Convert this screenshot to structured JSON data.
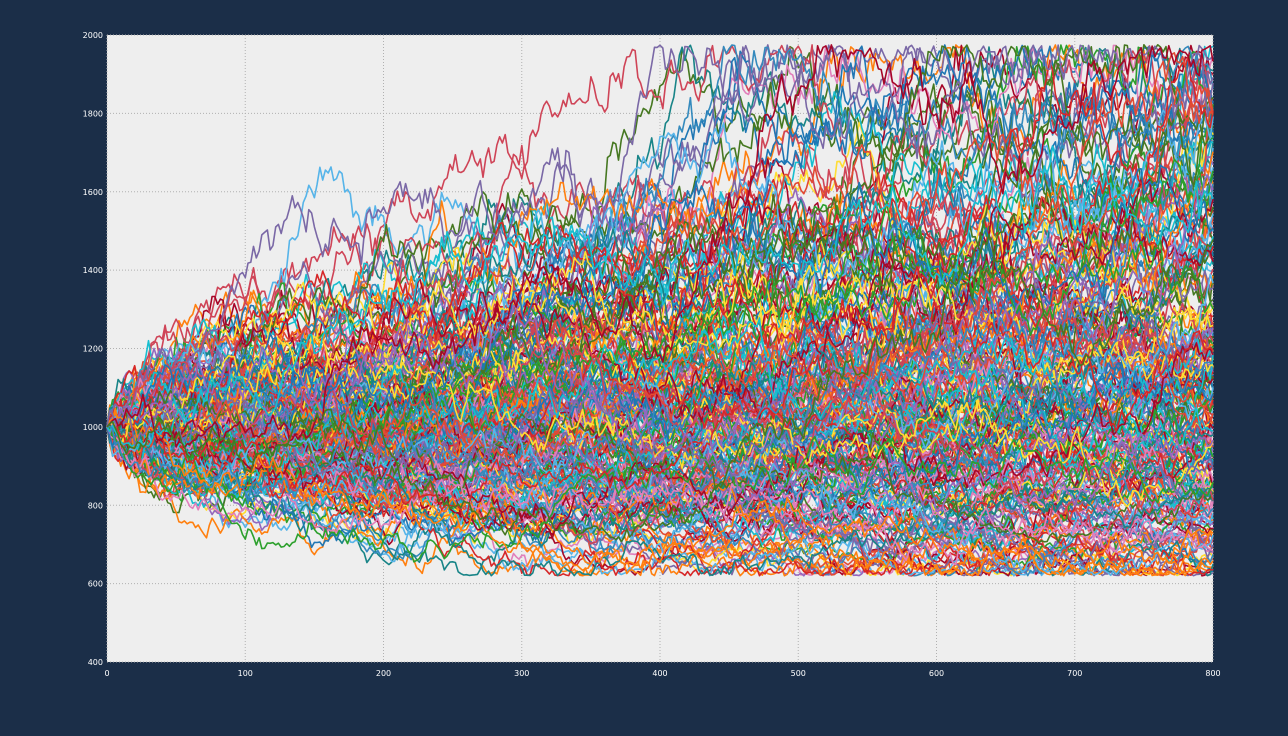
{
  "page": {
    "background_color": "#1b2e48"
  },
  "chart_data": {
    "type": "line",
    "title": "",
    "xlabel": "",
    "ylabel": "",
    "xlim": [
      0,
      800
    ],
    "ylim": [
      400,
      2000
    ],
    "x_ticks": [
      0,
      100,
      200,
      300,
      400,
      500,
      600,
      700,
      800
    ],
    "x_tick_labels": [
      "0",
      "100",
      "200",
      "300",
      "400",
      "500",
      "600",
      "700",
      "800"
    ],
    "y_ticks": [
      400,
      600,
      800,
      1000,
      1200,
      1400,
      1600,
      1800,
      2000
    ],
    "y_tick_labels": [
      "400",
      "600",
      "800",
      "1000",
      "1200",
      "1400",
      "1600",
      "1800",
      "2000"
    ],
    "grid": true,
    "grid_style": "dotted",
    "legend": "none",
    "plot_background": "#eeeeee",
    "tick_label_color": "#ffffff",
    "description_of_data": "Several hundred simulated random-walk price paths all starting at 1000 at x=0 and fanning out over 800 steps; final values range roughly from 630 to 1970.",
    "start_value": 1000,
    "n_steps": 800,
    "approx_min_final": 630,
    "approx_max_final": 1970,
    "series_colors": [
      "#348abd",
      "#7a68a6",
      "#a60628",
      "#467821",
      "#cf4457",
      "#188487",
      "#e24a33",
      "#ffdd33",
      "#56b4e9",
      "#e17fbb",
      "#1f77b4",
      "#2ca02c",
      "#d62728",
      "#9467bd",
      "#ff7f0e",
      "#17becf"
    ]
  }
}
